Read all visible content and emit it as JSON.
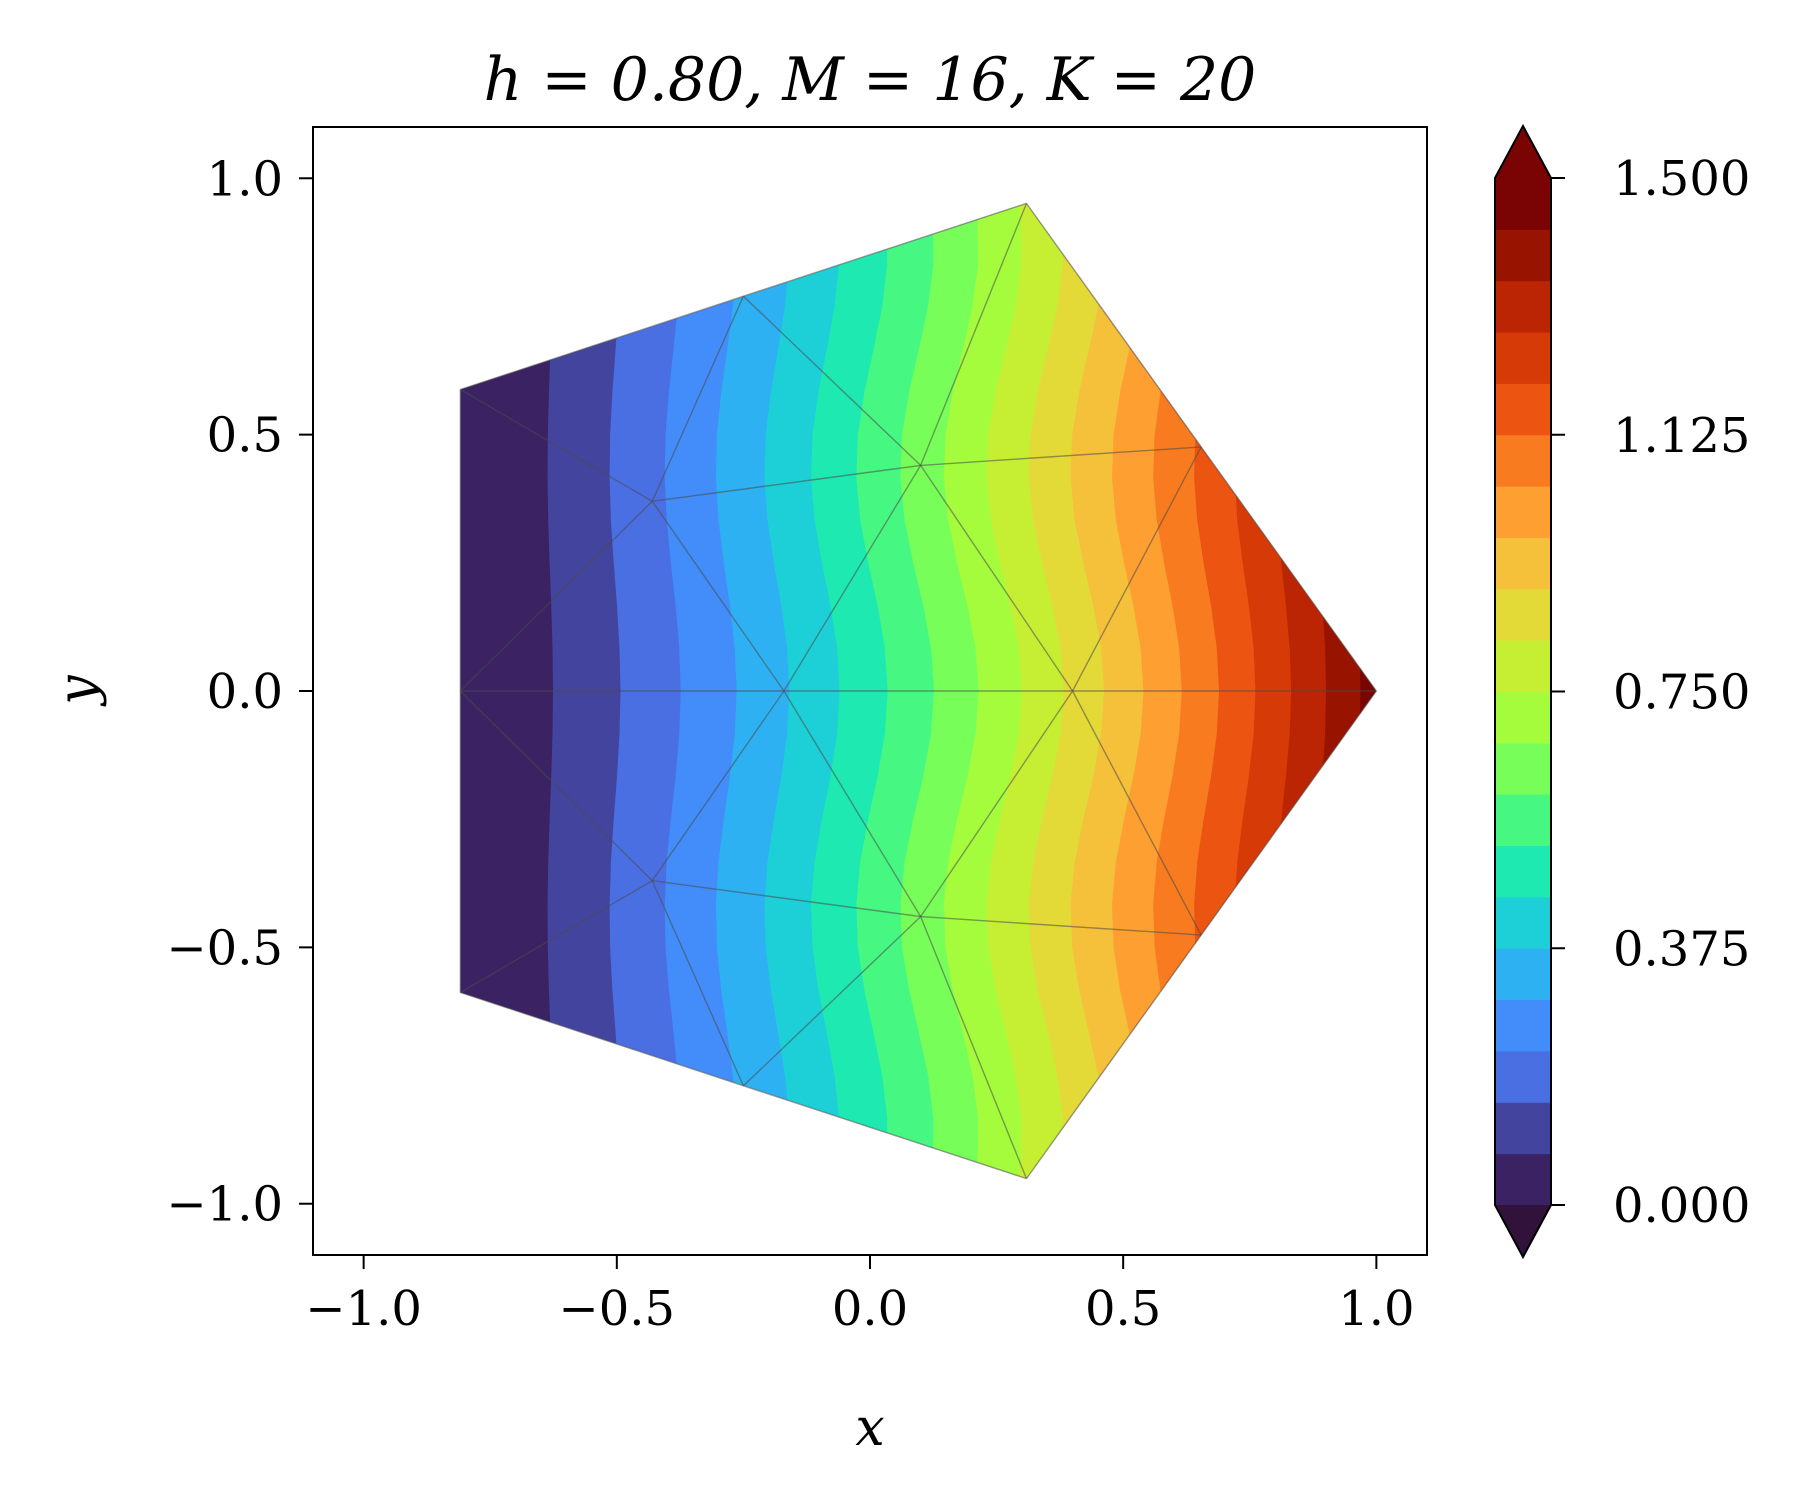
{
  "chart_data": {
    "type": "heatmap",
    "title": "h = 0.80, M = 16, K = 20",
    "xlabel": "x",
    "ylabel": "y",
    "xlim": [
      -1.1,
      1.1
    ],
    "ylim": [
      -1.1,
      1.1
    ],
    "x_ticks": [
      -1.0,
      -0.5,
      0.0,
      0.5,
      1.0
    ],
    "y_ticks": [
      -1.0,
      -0.5,
      0.0,
      0.5,
      1.0
    ],
    "x_tick_labels": [
      "−1.0",
      "−0.5",
      "0.0",
      "0.5",
      "1.0"
    ],
    "y_tick_labels": [
      "−1.0",
      "−0.5",
      "0.0",
      "0.5",
      "1.0"
    ],
    "grid": false,
    "domain": "regular pentagon of circumradius 1, vertex at (1, 0)",
    "field": "filled contour, value increasing left to right",
    "mesh": {
      "nodes": [
        [
          1.0,
          0.0
        ],
        [
          0.309,
          0.951
        ],
        [
          -0.809,
          0.588
        ],
        [
          -0.809,
          -0.588
        ],
        [
          0.309,
          -0.951
        ],
        [
          -0.25,
          0.77
        ],
        [
          -0.25,
          -0.77
        ],
        [
          0.654,
          0.476
        ],
        [
          0.654,
          -0.476
        ],
        [
          -0.809,
          0.0
        ],
        [
          0.4,
          0.0
        ],
        [
          -0.17,
          0.0
        ],
        [
          -0.43,
          0.37
        ],
        [
          -0.43,
          -0.37
        ],
        [
          0.1,
          0.44
        ],
        [
          0.1,
          -0.44
        ]
      ],
      "edges": [
        [
          0,
          7
        ],
        [
          7,
          1
        ],
        [
          1,
          5
        ],
        [
          5,
          2
        ],
        [
          2,
          9
        ],
        [
          9,
          3
        ],
        [
          3,
          6
        ],
        [
          6,
          4
        ],
        [
          4,
          8
        ],
        [
          8,
          0
        ],
        [
          9,
          11
        ],
        [
          11,
          10
        ],
        [
          10,
          0
        ],
        [
          2,
          12
        ],
        [
          12,
          9
        ],
        [
          9,
          13
        ],
        [
          13,
          3
        ],
        [
          5,
          12
        ],
        [
          12,
          11
        ],
        [
          11,
          13
        ],
        [
          13,
          6
        ],
        [
          12,
          14
        ],
        [
          14,
          7
        ],
        [
          13,
          15
        ],
        [
          15,
          8
        ],
        [
          5,
          14
        ],
        [
          14,
          1
        ],
        [
          14,
          11
        ],
        [
          14,
          10
        ],
        [
          6,
          15
        ],
        [
          15,
          4
        ],
        [
          15,
          11
        ],
        [
          15,
          10
        ],
        [
          10,
          7
        ],
        [
          10,
          8
        ]
      ]
    },
    "colorbar": {
      "min": 0.0,
      "max": 1.5,
      "levels": 20,
      "extend": "both",
      "ticks": [
        0.0,
        0.375,
        0.75,
        1.125,
        1.5
      ],
      "tick_labels": [
        "0.000",
        "0.375",
        "0.750",
        "1.125",
        "1.500"
      ],
      "colormap": "turbo",
      "colors": [
        "#3a2263",
        "#43449e",
        "#4a6fe3",
        "#428df9",
        "#2eb1f2",
        "#1dd0d8",
        "#1ee9b0",
        "#46f882",
        "#78fe58",
        "#a4fc3c",
        "#c6ef34",
        "#e3da38",
        "#f5c03a",
        "#fe9f32",
        "#f97b1f",
        "#eb5511",
        "#d63b07",
        "#bb2503",
        "#981401",
        "#7a0403"
      ],
      "under_color": "#30123b",
      "over_color": "#7a0403"
    }
  }
}
